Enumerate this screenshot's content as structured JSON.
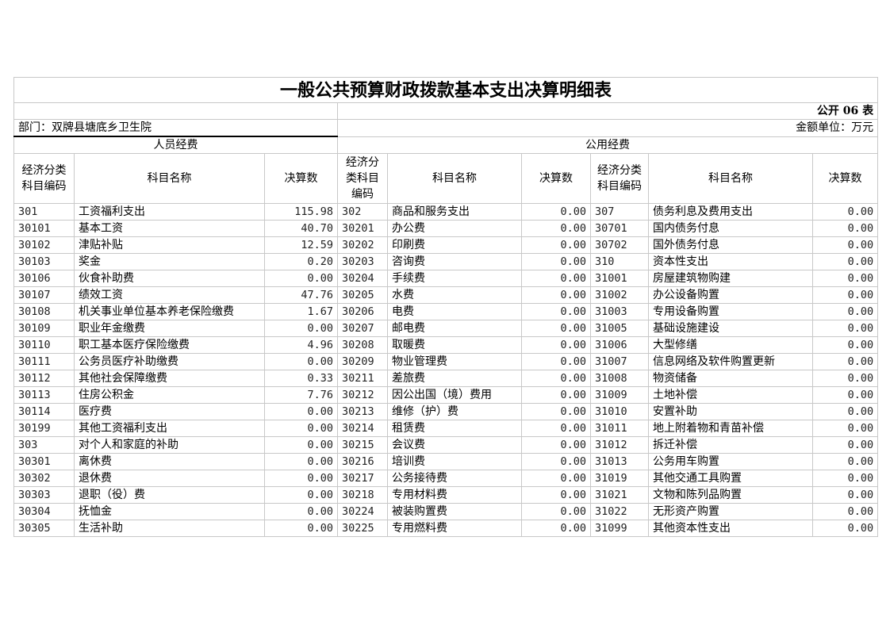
{
  "title": "一般公共预算财政拨款基本支出决算明细表",
  "table_no": "公开 06 表",
  "department": "部门：双牌县塘底乡卫生院",
  "unit": "金额单位：万元",
  "sections": {
    "personnel": "人员经费",
    "public": "公用经费"
  },
  "headers": {
    "code": "经济分类科目编码",
    "name": "科目名称",
    "amount": "决算数"
  },
  "rows": [
    [
      [
        "301",
        "工资福利支出",
        "115.98"
      ],
      [
        "302",
        "商品和服务支出",
        "0.00"
      ],
      [
        "307",
        "债务利息及费用支出",
        "0.00"
      ]
    ],
    [
      [
        "30101",
        "基本工资",
        "40.70"
      ],
      [
        "30201",
        "办公费",
        "0.00"
      ],
      [
        "30701",
        "国内债务付息",
        "0.00"
      ]
    ],
    [
      [
        "30102",
        "津贴补贴",
        "12.59"
      ],
      [
        "30202",
        "印刷费",
        "0.00"
      ],
      [
        "30702",
        "国外债务付息",
        "0.00"
      ]
    ],
    [
      [
        "30103",
        "奖金",
        "0.20"
      ],
      [
        "30203",
        "咨询费",
        "0.00"
      ],
      [
        "310",
        "资本性支出",
        "0.00"
      ]
    ],
    [
      [
        "30106",
        "伙食补助费",
        "0.00"
      ],
      [
        "30204",
        "手续费",
        "0.00"
      ],
      [
        "31001",
        "房屋建筑物购建",
        "0.00"
      ]
    ],
    [
      [
        "30107",
        "绩效工资",
        "47.76"
      ],
      [
        "30205",
        "水费",
        "0.00"
      ],
      [
        "31002",
        "办公设备购置",
        "0.00"
      ]
    ],
    [
      [
        "30108",
        "机关事业单位基本养老保险缴费",
        "1.67"
      ],
      [
        "30206",
        "电费",
        "0.00"
      ],
      [
        "31003",
        "专用设备购置",
        "0.00"
      ]
    ],
    [
      [
        "30109",
        "职业年金缴费",
        "0.00"
      ],
      [
        "30207",
        "邮电费",
        "0.00"
      ],
      [
        "31005",
        "基础设施建设",
        "0.00"
      ]
    ],
    [
      [
        "30110",
        "职工基本医疗保险缴费",
        "4.96"
      ],
      [
        "30208",
        "取暖费",
        "0.00"
      ],
      [
        "31006",
        "大型修缮",
        "0.00"
      ]
    ],
    [
      [
        "30111",
        "公务员医疗补助缴费",
        "0.00"
      ],
      [
        "30209",
        "物业管理费",
        "0.00"
      ],
      [
        "31007",
        "信息网络及软件购置更新",
        "0.00"
      ]
    ],
    [
      [
        "30112",
        "其他社会保障缴费",
        "0.33"
      ],
      [
        "30211",
        "差旅费",
        "0.00"
      ],
      [
        "31008",
        "物资储备",
        "0.00"
      ]
    ],
    [
      [
        "30113",
        "住房公积金",
        "7.76"
      ],
      [
        "30212",
        "因公出国（境）费用",
        "0.00"
      ],
      [
        "31009",
        "土地补偿",
        "0.00"
      ]
    ],
    [
      [
        "30114",
        "医疗费",
        "0.00"
      ],
      [
        "30213",
        "维修（护）费",
        "0.00"
      ],
      [
        "31010",
        "安置补助",
        "0.00"
      ]
    ],
    [
      [
        "30199",
        "其他工资福利支出",
        "0.00"
      ],
      [
        "30214",
        "租赁费",
        "0.00"
      ],
      [
        "31011",
        "地上附着物和青苗补偿",
        "0.00"
      ]
    ],
    [
      [
        "303",
        "对个人和家庭的补助",
        "0.00"
      ],
      [
        "30215",
        "会议费",
        "0.00"
      ],
      [
        "31012",
        "拆迁补偿",
        "0.00"
      ]
    ],
    [
      [
        "30301",
        "离休费",
        "0.00"
      ],
      [
        "30216",
        "培训费",
        "0.00"
      ],
      [
        "31013",
        "公务用车购置",
        "0.00"
      ]
    ],
    [
      [
        "30302",
        "退休费",
        "0.00"
      ],
      [
        "30217",
        "公务接待费",
        "0.00"
      ],
      [
        "31019",
        "其他交通工具购置",
        "0.00"
      ]
    ],
    [
      [
        "30303",
        "退职（役）费",
        "0.00"
      ],
      [
        "30218",
        "专用材料费",
        "0.00"
      ],
      [
        "31021",
        "文物和陈列品购置",
        "0.00"
      ]
    ],
    [
      [
        "30304",
        "抚恤金",
        "0.00"
      ],
      [
        "30224",
        "被装购置费",
        "0.00"
      ],
      [
        "31022",
        "无形资产购置",
        "0.00"
      ]
    ],
    [
      [
        "30305",
        "生活补助",
        "0.00"
      ],
      [
        "30225",
        "专用燃料费",
        "0.00"
      ],
      [
        "31099",
        "其他资本性支出",
        "0.00"
      ]
    ]
  ]
}
